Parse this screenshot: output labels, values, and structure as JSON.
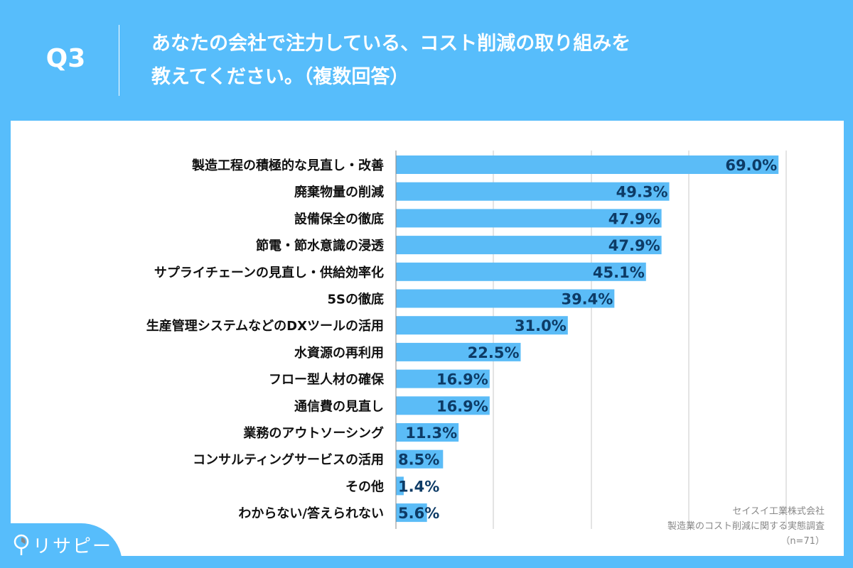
{
  "header": {
    "q": "Q3",
    "title": "あなたの会社で注力している、コスト削減の取り組みを\n教えてください。（複数回答）"
  },
  "source": {
    "company": "セイスイ工業株式会社",
    "survey": "製造業のコスト削減に関する実態調査",
    "n": "（n=71）"
  },
  "logo": "リサピー",
  "colors": {
    "background": "#57bdfb",
    "bar": "#5bbcf7",
    "value": "#0d3b66"
  },
  "chart_data": {
    "type": "bar",
    "orientation": "horizontal",
    "grid": true,
    "xlim": [
      0,
      100
    ],
    "categories": [
      "製造工程の積極的な見直し・改善",
      "廃棄物量の削減",
      "設備保全の徹底",
      "節電・節水意識の浸透",
      "サプライチェーンの見直し・供給効率化",
      "5Sの徹底",
      "生産管理システムなどのDXツールの活用",
      "水資源の再利用",
      "フロー型人材の確保",
      "通信費の見直し",
      "業務のアウトソーシング",
      "コンサルティングサービスの活用",
      "その他",
      "わからない/答えられない"
    ],
    "values": [
      69.0,
      49.3,
      47.9,
      47.9,
      45.1,
      39.4,
      31.0,
      22.5,
      16.9,
      16.9,
      11.3,
      8.5,
      1.4,
      5.6
    ],
    "labels": [
      "69.0%",
      "49.3%",
      "47.9%",
      "47.9%",
      "45.1%",
      "39.4%",
      "31.0%",
      "22.5%",
      "16.9%",
      "16.9%",
      "11.3%",
      "8.5%",
      "1.4%",
      "5.6%"
    ]
  }
}
